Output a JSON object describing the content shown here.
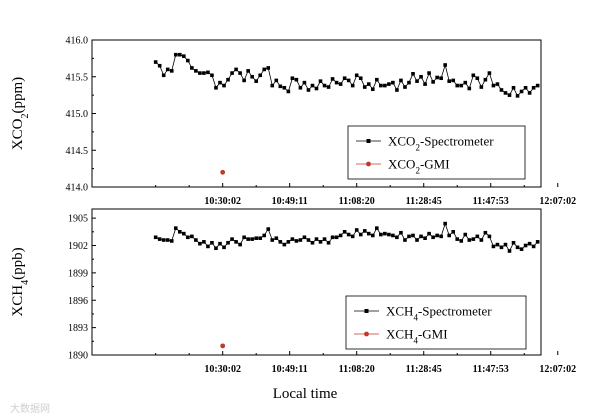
{
  "chart_data": [
    {
      "type": "scatter",
      "panel": "top",
      "ylabel_main": "XCO",
      "ylabel_sub": "2",
      "ylabel_unit": "(ppm)",
      "ylim": [
        414.0,
        416.0
      ],
      "yticks": [
        "414.0",
        "414.5",
        "415.0",
        "415.5",
        "416.0"
      ],
      "yticks_values": [
        414.0,
        414.5,
        415.0,
        415.5,
        416.0
      ],
      "x_tick_labels": [
        "10:30:02",
        "10:49:11",
        "11:08:20",
        "11:28:45",
        "11:47:53",
        "12:07:02"
      ],
      "x_tick_values": [
        1,
        2,
        3,
        4,
        5,
        6
      ],
      "xlim": [
        -0.95,
        5.75
      ],
      "legend_position": "bottom-right",
      "series": [
        {
          "name_main": "XCO",
          "name_sub": "2",
          "name_tail": "-Spectrometer",
          "marker": "square",
          "color": "#000000",
          "x": [
            0,
            0.06,
            0.12,
            0.18,
            0.24,
            0.3,
            0.36,
            0.42,
            0.48,
            0.54,
            0.6,
            0.66,
            0.72,
            0.78,
            0.84,
            0.9,
            0.96,
            1.02,
            1.08,
            1.14,
            1.2,
            1.26,
            1.32,
            1.38,
            1.44,
            1.5,
            1.56,
            1.62,
            1.68,
            1.74,
            1.8,
            1.86,
            1.92,
            1.98,
            2.04,
            2.1,
            2.16,
            2.22,
            2.28,
            2.34,
            2.4,
            2.46,
            2.52,
            2.58,
            2.64,
            2.7,
            2.76,
            2.82,
            2.88,
            2.94,
            3.0,
            3.06,
            3.12,
            3.18,
            3.24,
            3.3,
            3.36,
            3.42,
            3.48,
            3.54,
            3.6,
            3.66,
            3.72,
            3.78,
            3.84,
            3.9,
            3.96,
            4.02,
            4.08,
            4.14,
            4.2,
            4.26,
            4.32,
            4.38,
            4.44,
            4.5,
            4.56,
            4.62,
            4.68,
            4.74,
            4.8,
            4.86,
            4.92,
            4.98,
            5.04,
            5.1,
            5.16,
            5.22,
            5.28,
            5.34,
            5.4,
            5.46,
            5.52,
            5.58,
            5.64,
            5.7
          ],
          "values": [
            415.7,
            415.65,
            415.52,
            415.6,
            415.58,
            415.8,
            415.8,
            415.78,
            415.72,
            415.62,
            415.58,
            415.55,
            415.55,
            415.56,
            415.52,
            415.35,
            415.42,
            415.38,
            415.46,
            415.55,
            415.6,
            415.55,
            415.45,
            415.58,
            415.5,
            415.44,
            415.52,
            415.6,
            415.62,
            415.38,
            415.45,
            415.37,
            415.35,
            415.3,
            415.48,
            415.46,
            415.35,
            415.42,
            415.32,
            415.38,
            415.34,
            415.44,
            415.38,
            415.36,
            415.47,
            415.42,
            415.4,
            415.48,
            415.45,
            415.38,
            415.52,
            415.48,
            415.36,
            415.4,
            415.33,
            415.46,
            415.38,
            415.38,
            415.4,
            415.42,
            415.32,
            415.45,
            415.36,
            415.42,
            415.54,
            415.44,
            415.5,
            415.4,
            415.55,
            415.43,
            415.49,
            415.48,
            415.66,
            415.44,
            415.45,
            415.38,
            415.38,
            415.42,
            415.34,
            415.52,
            415.48,
            415.36,
            415.46,
            415.55,
            415.38,
            415.4,
            415.32,
            415.28,
            415.25,
            415.35,
            415.24,
            415.3,
            415.35,
            415.28,
            415.35,
            415.38
          ]
        },
        {
          "name_main": "XCO",
          "name_sub": "2",
          "name_tail": "-GMI",
          "marker": "circle",
          "color": "#c0392b",
          "x": [
            1
          ],
          "values": [
            414.2
          ]
        }
      ]
    },
    {
      "type": "scatter",
      "panel": "bottom",
      "ylabel_main": "XCH",
      "ylabel_sub": "4",
      "ylabel_unit": "(ppb)",
      "ylim": [
        1890,
        1906
      ],
      "yticks": [
        "1890",
        "1893",
        "1896",
        "1899",
        "1902",
        "1905"
      ],
      "yticks_values": [
        1890,
        1893,
        1896,
        1899,
        1902,
        1905
      ],
      "x_tick_labels": [
        "10:30:02",
        "10:49:11",
        "11:08:20",
        "11:28:45",
        "11:47:53",
        "12:07:02"
      ],
      "x_tick_values": [
        1,
        2,
        3,
        4,
        5,
        6
      ],
      "xlim": [
        -0.95,
        5.75
      ],
      "xlabel": "Local time",
      "legend_position": "bottom-right",
      "series": [
        {
          "name_main": "XCH",
          "name_sub": "4",
          "name_tail": "-Spectrometer",
          "marker": "square",
          "color": "#000000",
          "x": [
            0,
            0.06,
            0.12,
            0.18,
            0.24,
            0.3,
            0.36,
            0.42,
            0.48,
            0.54,
            0.6,
            0.66,
            0.72,
            0.78,
            0.84,
            0.9,
            0.96,
            1.02,
            1.08,
            1.14,
            1.2,
            1.26,
            1.32,
            1.38,
            1.44,
            1.5,
            1.56,
            1.62,
            1.68,
            1.74,
            1.8,
            1.86,
            1.92,
            1.98,
            2.04,
            2.1,
            2.16,
            2.22,
            2.28,
            2.34,
            2.4,
            2.46,
            2.52,
            2.58,
            2.64,
            2.7,
            2.76,
            2.82,
            2.88,
            2.94,
            3.0,
            3.06,
            3.12,
            3.18,
            3.24,
            3.3,
            3.36,
            3.42,
            3.48,
            3.54,
            3.6,
            3.66,
            3.72,
            3.78,
            3.84,
            3.9,
            3.96,
            4.02,
            4.08,
            4.14,
            4.2,
            4.26,
            4.32,
            4.38,
            4.44,
            4.5,
            4.56,
            4.62,
            4.68,
            4.74,
            4.8,
            4.86,
            4.92,
            4.98,
            5.04,
            5.1,
            5.16,
            5.22,
            5.28,
            5.34,
            5.4,
            5.46,
            5.52,
            5.58,
            5.64,
            5.7
          ],
          "values": [
            1902.9,
            1902.7,
            1902.6,
            1902.6,
            1902.5,
            1903.9,
            1903.5,
            1903.3,
            1902.9,
            1903.0,
            1902.6,
            1902.2,
            1902.4,
            1901.9,
            1902.3,
            1901.7,
            1902.2,
            1901.8,
            1902.3,
            1902.7,
            1902.4,
            1902.1,
            1902.9,
            1902.7,
            1902.7,
            1902.8,
            1902.8,
            1903.1,
            1903.8,
            1902.6,
            1902.8,
            1902.4,
            1902.1,
            1902.4,
            1902.7,
            1902.5,
            1902.6,
            1902.9,
            1902.6,
            1902.3,
            1902.7,
            1902.4,
            1902.7,
            1902.3,
            1902.9,
            1902.9,
            1903.1,
            1903.5,
            1903.2,
            1903.0,
            1903.7,
            1903.2,
            1903.6,
            1903.3,
            1903.1,
            1903.9,
            1903.2,
            1903.3,
            1903.2,
            1903.1,
            1902.9,
            1903.4,
            1902.6,
            1903.0,
            1903.1,
            1902.6,
            1903.0,
            1902.8,
            1903.3,
            1902.9,
            1903.1,
            1903.0,
            1904.4,
            1903.1,
            1903.5,
            1902.7,
            1902.5,
            1903.2,
            1902.6,
            1902.7,
            1903.0,
            1902.6,
            1903.4,
            1903.0,
            1901.9,
            1902.1,
            1901.8,
            1902.1,
            1901.4,
            1902.3,
            1901.8,
            1901.6,
            1902.0,
            1902.2,
            1901.9,
            1902.4
          ]
        },
        {
          "name_main": "XCH",
          "name_sub": "4",
          "name_tail": "-GMI",
          "marker": "circle",
          "color": "#c0392b",
          "x": [
            1
          ],
          "values": [
            1891.0
          ]
        }
      ]
    }
  ],
  "watermark": "大数据网"
}
